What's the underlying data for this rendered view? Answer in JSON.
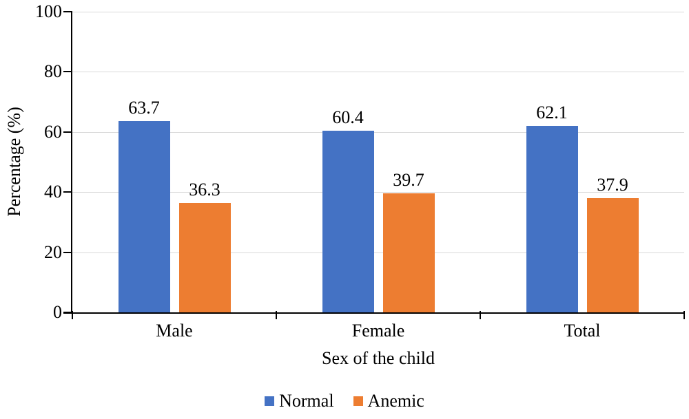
{
  "chart_data": {
    "type": "bar",
    "title": "",
    "categories": [
      "Male",
      "Female",
      "Total"
    ],
    "series": [
      {
        "name": "Normal",
        "color": "#4472C4",
        "values": [
          63.7,
          60.4,
          62.1
        ],
        "labels": [
          "63.7",
          "60.4",
          "62.1"
        ]
      },
      {
        "name": "Anemic",
        "color": "#ED7D31",
        "values": [
          36.3,
          39.7,
          37.9
        ],
        "labels": [
          "36.3",
          "39.7",
          "37.9"
        ]
      }
    ],
    "xlabel": "Sex of the child",
    "ylabel": "Percentage (%)",
    "ylim": [
      0,
      100
    ],
    "yticks": [
      0,
      20,
      40,
      60,
      80,
      100
    ],
    "grid": true,
    "data_labels": true,
    "legend_position": "bottom",
    "colors": {
      "axis": "#000000",
      "gridline": "#D9D9D9",
      "text": "#000000",
      "background": "#FFFFFF"
    }
  }
}
